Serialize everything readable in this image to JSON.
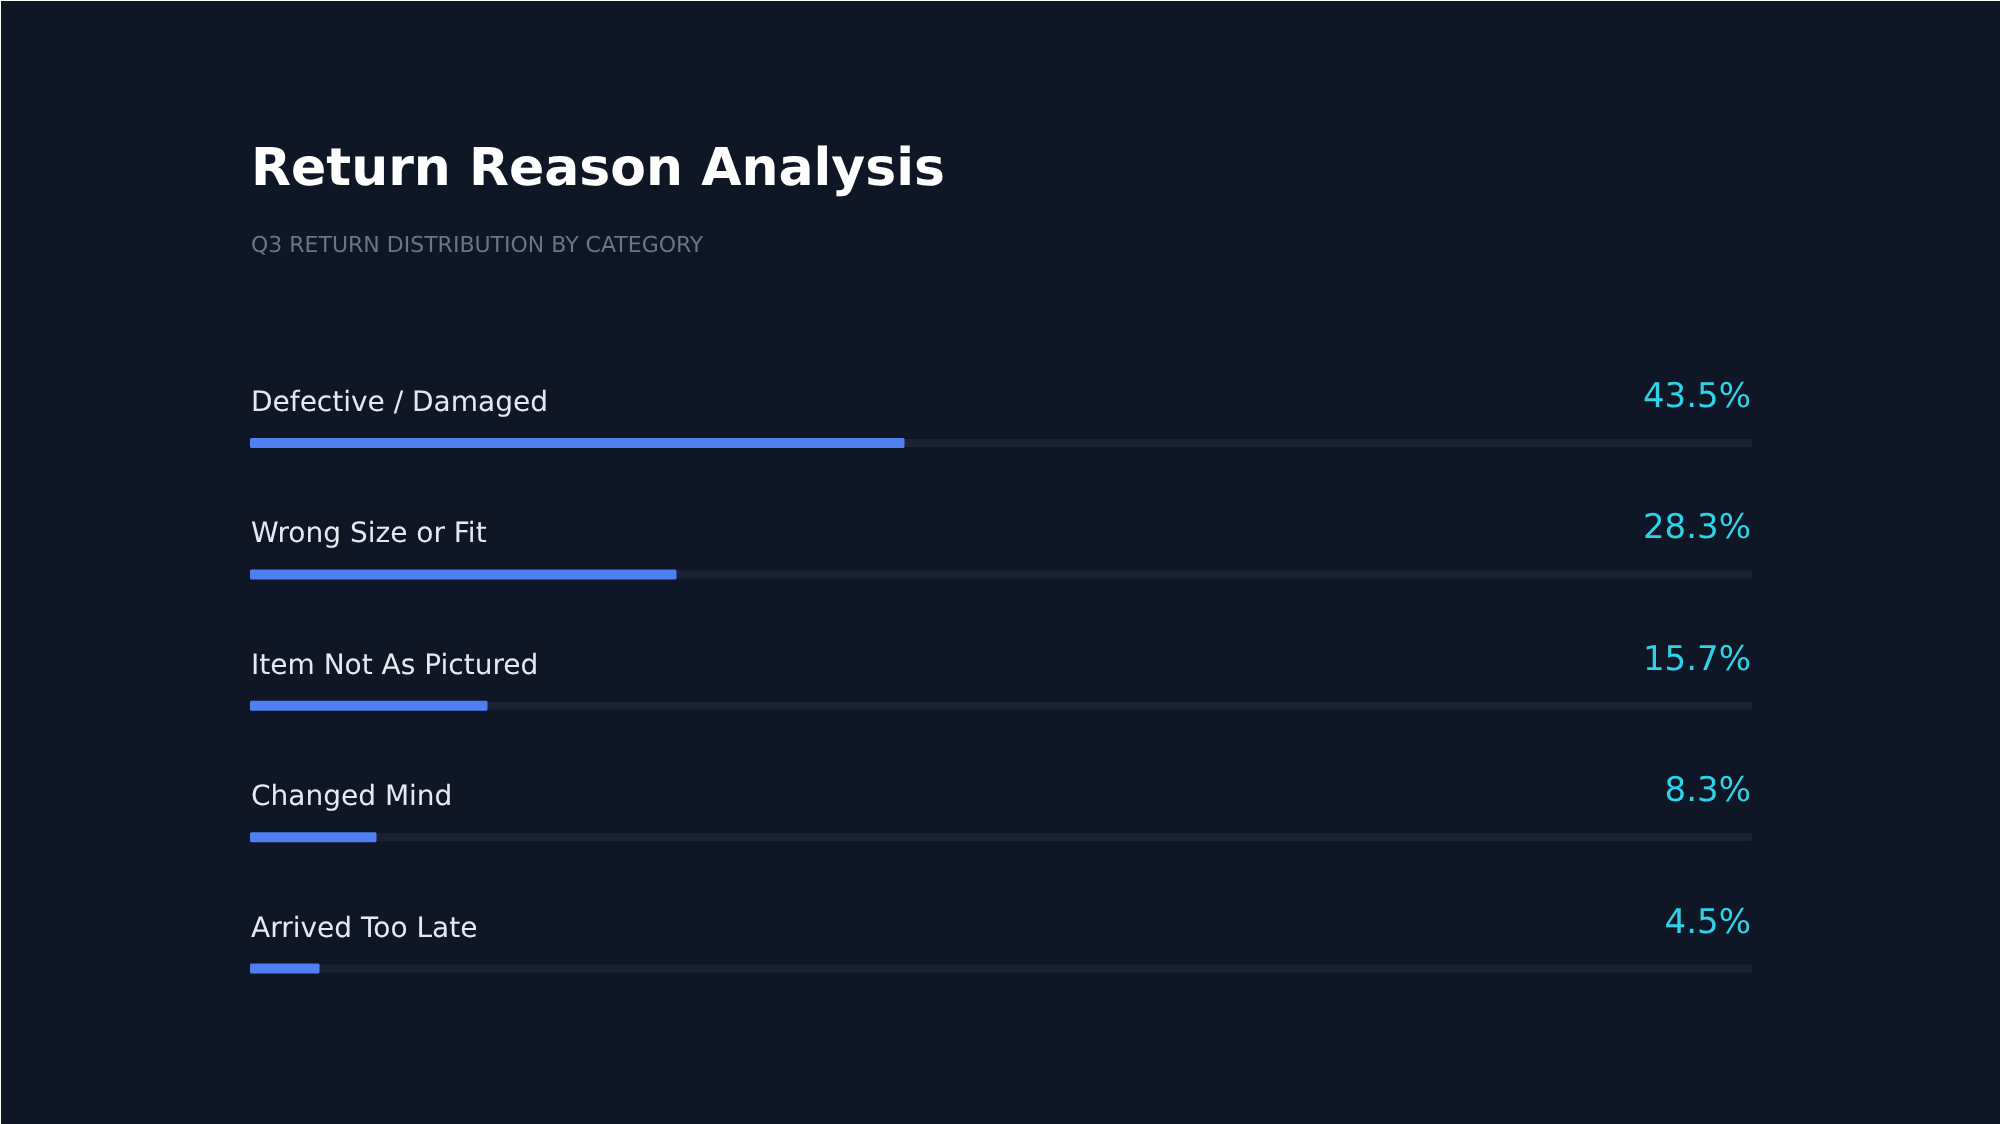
{
  "chart_data": {
    "type": "bar",
    "orientation": "horizontal",
    "title": "Return Reason Analysis",
    "subtitle": "Q3 RETURN DISTRIBUTION BY CATEGORY",
    "categories": [
      "Defective / Damaged",
      "Wrong Size or Fit",
      "Item Not As Pictured",
      "Changed Mind",
      "Arrived Too Late"
    ],
    "values": [
      43.5,
      28.3,
      15.7,
      8.3,
      4.5
    ],
    "value_labels": [
      "43.5%",
      "28.3%",
      "15.7%",
      "8.3%",
      "4.5%"
    ],
    "color": "#4f7ff0",
    "xlim": [
      0,
      100
    ]
  }
}
